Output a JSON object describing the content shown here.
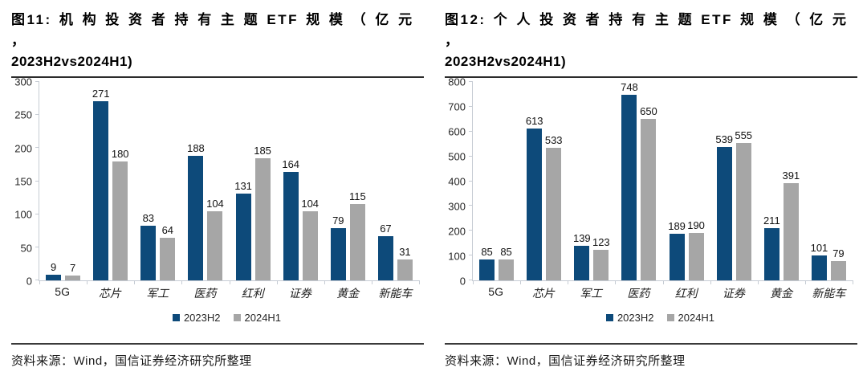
{
  "colors": {
    "series_2023h2": "#0d4a7a",
    "series_2024h1": "#a6a6a6",
    "axis_line": "#c6ccd4"
  },
  "chart_data": [
    {
      "type": "bar",
      "figure_label": "图11",
      "title_line1": "图11: 机 构 投 资 者 持 有 主 题 ETF 规 模 （ 亿 元 ，",
      "title_line2": "2023H2vs2024H1)",
      "categories": [
        "5G",
        "芯片",
        "军工",
        "医药",
        "红利",
        "证券",
        "黄金",
        "新能车"
      ],
      "series": [
        {
          "name": "2023H2",
          "color": "#0d4a7a",
          "values": [
            9,
            271,
            83,
            188,
            131,
            164,
            79,
            67
          ]
        },
        {
          "name": "2024H1",
          "color": "#a6a6a6",
          "values": [
            7,
            180,
            64,
            104,
            185,
            104,
            115,
            31
          ]
        }
      ],
      "ylim": [
        0,
        300
      ],
      "ytick_step": 50,
      "xlabel": "",
      "ylabel": "",
      "grid": false,
      "legend_position": "bottom",
      "source": "资料来源：Wind，国信证券经济研究所整理"
    },
    {
      "type": "bar",
      "figure_label": "图12",
      "title_line1": "图12: 个 人 投 资 者 持 有 主 题 ETF 规 模 （ 亿 元 ，",
      "title_line2": "2023H2vs2024H1)",
      "categories": [
        "5G",
        "芯片",
        "军工",
        "医药",
        "红利",
        "证券",
        "黄金",
        "新能车"
      ],
      "series": [
        {
          "name": "2023H2",
          "color": "#0d4a7a",
          "values": [
            85,
            613,
            139,
            748,
            189,
            539,
            211,
            101
          ]
        },
        {
          "name": "2024H1",
          "color": "#a6a6a6",
          "values": [
            85,
            533,
            123,
            650,
            190,
            555,
            391,
            79
          ]
        }
      ],
      "ylim": [
        0,
        800
      ],
      "ytick_step": 100,
      "xlabel": "",
      "ylabel": "",
      "grid": false,
      "legend_position": "bottom",
      "source": "资料来源：Wind，国信证券经济研究所整理"
    }
  ]
}
